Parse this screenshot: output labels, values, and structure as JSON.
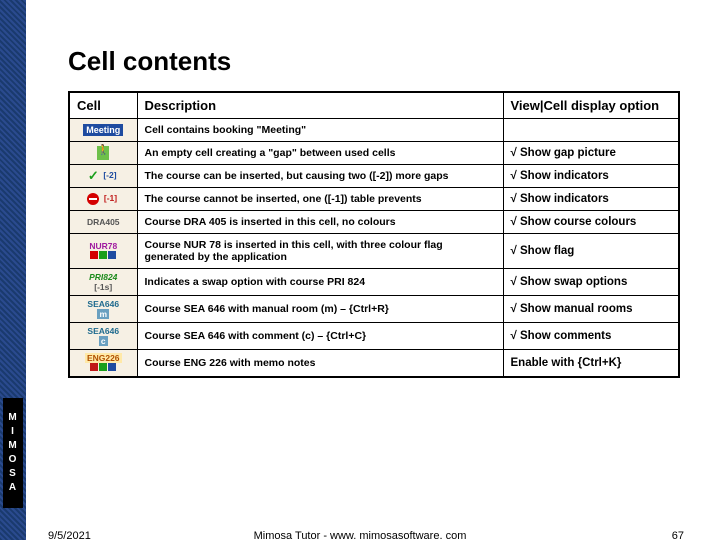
{
  "title": "Cell contents",
  "columns": {
    "cell": "Cell",
    "desc": "Description",
    "opt": "View|Cell display option"
  },
  "rows": [
    {
      "cell_html": "<span class='cv meeting'>Meeting</span>",
      "desc": "Cell contains booking \"Meeting\"",
      "opt": ""
    },
    {
      "cell_html": "<span class='cv walker'></span>",
      "desc": "An empty cell creating a \"gap\" between used cells",
      "opt": "√ Show gap picture"
    },
    {
      "cell_html": "<span class='cv tick-green'>✓</span> <span class='tag' style='color:#1e4ba0'>[-2]</span>",
      "desc": "The course can be inserted, but causing two ([-2]) more gaps",
      "opt": "√ Show indicators"
    },
    {
      "cell_html": "<span class='cv nosign'></span> <span class='tag' style='color:#c01818'>[-1]</span>",
      "desc": "The course cannot be inserted, one ([-1]) table prevents",
      "opt": "√ Show indicators"
    },
    {
      "cell_html": "<span class='tag' style='color:#555'>DRA405</span>",
      "desc": "Course DRA 405 is inserted in this cell, no colours",
      "opt": "√ Show course colours"
    },
    {
      "cell_html": "<span class='tag' style='color:#a01aa0'>NUR78</span><br><span class='flagset'><span style='background:#d40000'></span><span style='background:#1a9e1a'></span><span style='background:#1e4ba0'></span></span>",
      "desc": "Course NUR 78 is inserted in this cell, with three colour flag generated by the application",
      "opt": "√ Show flag"
    },
    {
      "cell_html": "<span class='tag' style='color:#1a8a1a;font-style:italic'>PRI824</span><br><span class='tag' style='color:#555'>[-1s]</span>",
      "desc": "Indicates a swap option with course PRI 824",
      "opt": "√ Show swap options"
    },
    {
      "cell_html": "<span class='tag' style='color:#1e6a8e'>SEA646</span><br><span class='tag' style='background:#6aa0c0;color:#fff'>m</span>",
      "desc": "Course SEA 646 with manual room (m) – {Ctrl+R}",
      "opt": "√ Show manual rooms"
    },
    {
      "cell_html": "<span class='tag' style='color:#1e6a8e'>SEA646</span><br><span class='tag' style='background:#6aa0c0;color:#fff'>c</span>",
      "desc": "Course SEA 646 with comment (c) – {Ctrl+C}",
      "opt": "√ Show comments"
    },
    {
      "cell_html": "<span class='tag' style='background:#ffe9a8;color:#b05000'>ENG226</span><br><span class='flagset'><span style='background:#c01818'></span><span style='background:#1a9e1a'></span><span style='background:#1e4ba0'></span></span>",
      "desc": "Course ENG 226 with memo notes",
      "opt": "Enable with {Ctrl+K}"
    }
  ],
  "footer": {
    "date": "9/5/2021",
    "center": "Mimosa Tutor - www. mimosasoftware. com",
    "page": "67"
  },
  "brand_letters": [
    "M",
    "I",
    "M",
    "O",
    "S",
    "A"
  ]
}
